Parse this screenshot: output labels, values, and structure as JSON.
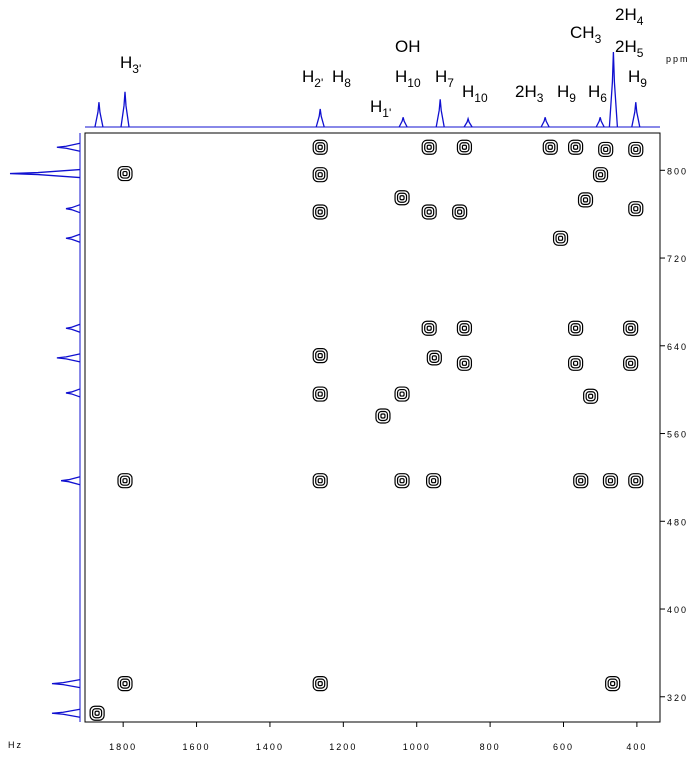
{
  "chart_data": {
    "type": "cosy",
    "x_unit": "Hz",
    "y_unit": "ppm",
    "xlim": [
      1904,
      337
    ],
    "ylim": [
      834,
      297
    ],
    "xticks": [
      1800,
      1600,
      1400,
      1200,
      1000,
      800,
      600,
      400
    ],
    "yticks": [
      800,
      720,
      640,
      560,
      480,
      400,
      320
    ],
    "contour_color": "#000000",
    "projection_color": "#1010d0",
    "peaks": {
      "x": [
        1795,
        1795,
        1795,
        1871,
        1263,
        1263,
        1263,
        1263,
        1263,
        1263,
        1263,
        1040,
        966,
        870,
        966,
        870,
        952,
        870,
        1040,
        1040,
        954,
        1092,
        636,
        567,
        485,
        403,
        608,
        499,
        540,
        403,
        553,
        472,
        403,
        567,
        567,
        526,
        417,
        417,
        466,
        966,
        883
      ],
      "y": [
        797,
        517,
        332,
        305,
        821,
        796,
        762,
        631,
        596,
        517,
        332,
        775,
        821,
        821,
        656,
        656,
        629,
        624,
        596,
        517,
        517,
        576,
        821,
        821,
        819,
        819,
        738,
        796,
        773,
        765,
        517,
        517,
        517,
        656,
        624,
        594,
        656,
        624,
        332,
        762,
        762
      ]
    },
    "top_projection": {
      "x": [
        1866,
        1795,
        1263,
        1037,
        936,
        860,
        650,
        500,
        464,
        403
      ],
      "heights": [
        33,
        47,
        24,
        13,
        37,
        11,
        13,
        13,
        100,
        33
      ]
    },
    "left_projection": {
      "y": [
        821,
        797,
        765,
        738,
        656,
        629,
        597,
        517,
        332,
        305
      ],
      "heights": [
        33,
        100,
        20,
        20,
        20,
        33,
        20,
        27,
        40,
        40
      ]
    },
    "annotations": [
      {
        "base": "H",
        "sub": "3'"
      },
      {
        "base": "H",
        "sub": "2'"
      },
      {
        "base": "H",
        "sub": "8"
      },
      {
        "base": "OH",
        "sub": ""
      },
      {
        "base": "H",
        "sub": "10"
      },
      {
        "base": "H",
        "sub": "7"
      },
      {
        "base": "H",
        "sub": "1'"
      },
      {
        "base": "H",
        "sub": "10"
      },
      {
        "base": "2H",
        "sub": "3"
      },
      {
        "base": "H",
        "sub": "9"
      },
      {
        "base": "H",
        "sub": "6"
      },
      {
        "base": "CH",
        "sub": "3"
      },
      {
        "base": "2H",
        "sub": "4"
      },
      {
        "base": "2H",
        "sub": "5"
      },
      {
        "base": "H",
        "sub": "9"
      }
    ]
  }
}
